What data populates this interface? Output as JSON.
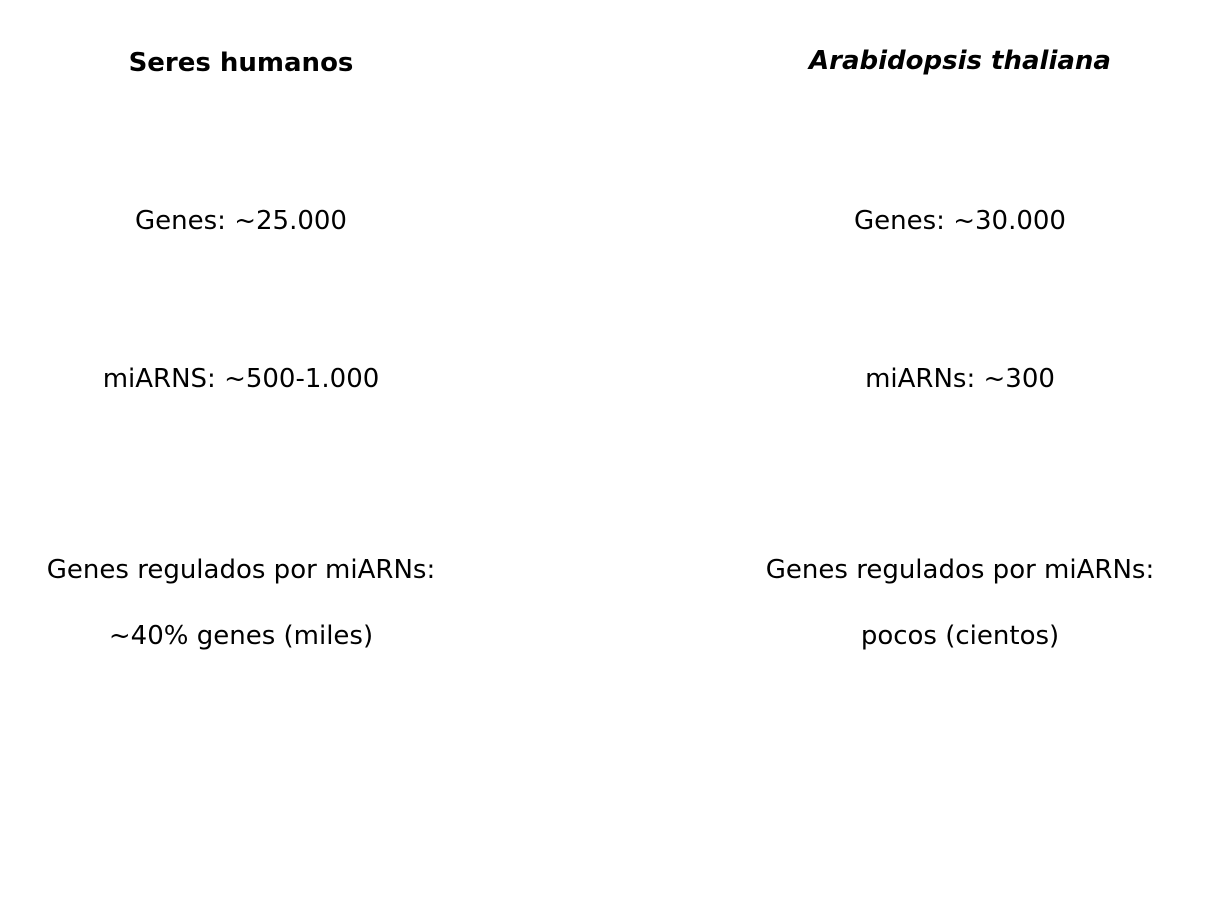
{
  "columns": [
    {
      "title": "Seres humanos",
      "genes": "Genes: ~25.000",
      "mirnas": "miARNS: ~500-1.000",
      "regulated_line1": "Genes regulados por miARNs:",
      "regulated_line2": "~40% genes (miles)"
    },
    {
      "title": "Arabidopsis thaliana",
      "genes": "Genes: ~30.000",
      "mirnas": "miARNs: ~300",
      "regulated_line1": "Genes regulados por miARNs:",
      "regulated_line2": "pocos (cientos)"
    }
  ]
}
